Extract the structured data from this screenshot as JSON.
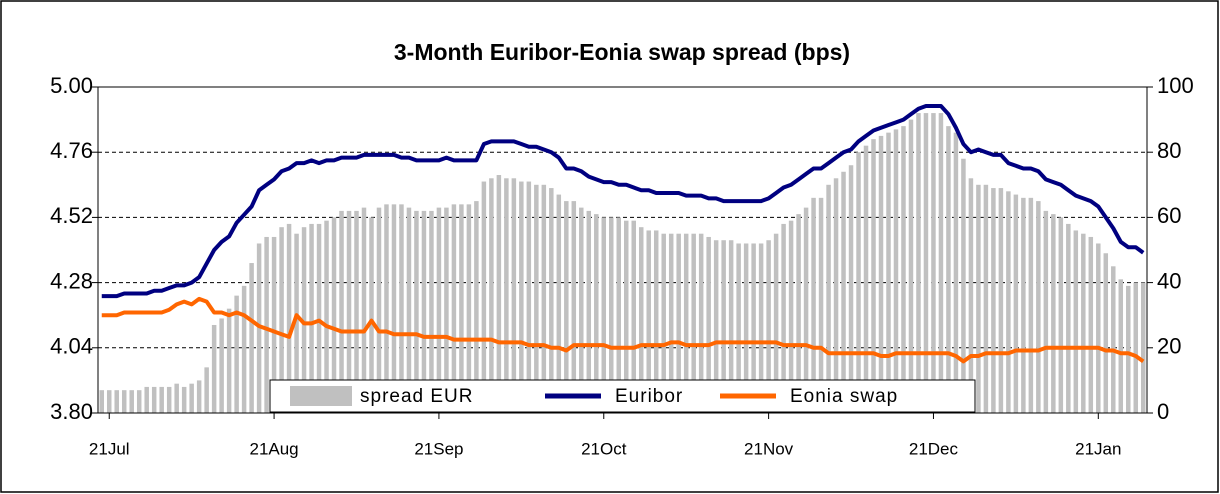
{
  "chart_data": {
    "type": "bar",
    "title": "3-Month Euribor-Eonia swap spread (bps)",
    "categories": [
      null,
      "21Jul",
      null,
      null,
      null,
      null,
      null,
      null,
      null,
      null,
      null,
      null,
      null,
      null,
      null,
      null,
      null,
      null,
      null,
      null,
      null,
      null,
      null,
      "21Aug",
      null,
      null,
      null,
      null,
      null,
      null,
      null,
      null,
      null,
      null,
      null,
      null,
      null,
      null,
      null,
      null,
      null,
      null,
      null,
      null,
      null,
      "21Sep",
      null,
      null,
      null,
      null,
      null,
      null,
      null,
      null,
      null,
      null,
      null,
      null,
      null,
      null,
      null,
      null,
      null,
      null,
      null,
      null,
      null,
      "21Oct",
      null,
      null,
      null,
      null,
      null,
      null,
      null,
      null,
      null,
      null,
      null,
      null,
      null,
      null,
      null,
      null,
      null,
      null,
      null,
      null,
      null,
      "21Nov",
      null,
      null,
      null,
      null,
      null,
      null,
      null,
      null,
      null,
      null,
      null,
      null,
      null,
      null,
      null,
      null,
      null,
      null,
      null,
      null,
      null,
      "21Dec",
      null,
      null,
      null,
      null,
      null,
      null,
      null,
      null,
      null,
      null,
      null,
      null,
      null,
      null,
      null,
      null,
      null,
      null,
      null,
      null,
      null,
      "21Jan",
      null,
      null,
      null,
      null,
      null,
      null
    ],
    "series": [
      {
        "name": "spread EUR",
        "type": "bar",
        "axis": "y2",
        "color": "#c0c0c0",
        "values": [
          7,
          7,
          7,
          7,
          7,
          7,
          8,
          8,
          8,
          8,
          9,
          8,
          9,
          10,
          14,
          27,
          29,
          32,
          36,
          39,
          46,
          52,
          54,
          54,
          57,
          58,
          55,
          57,
          58,
          58,
          59,
          60,
          62,
          62,
          62,
          63,
          60,
          63,
          64,
          64,
          64,
          63,
          62,
          62,
          62,
          63,
          63,
          64,
          64,
          64,
          65,
          71,
          72,
          73,
          72,
          72,
          71,
          71,
          70,
          70,
          69,
          67,
          65,
          65,
          63,
          62,
          61,
          60,
          60,
          60,
          59,
          59,
          57,
          56,
          56,
          55,
          55,
          55,
          55,
          55,
          55,
          54,
          53,
          53,
          53,
          52,
          52,
          52,
          52,
          53,
          55,
          58,
          59,
          61,
          63,
          66,
          66,
          70,
          72,
          74,
          76,
          80,
          82,
          84,
          85,
          86,
          87,
          88,
          90,
          92,
          92,
          92,
          92,
          88,
          86,
          78,
          72,
          70,
          70,
          69,
          69,
          68,
          67,
          66,
          66,
          65,
          62,
          61,
          60,
          58,
          56,
          55,
          54,
          52,
          49,
          45,
          41,
          39,
          40,
          40
        ]
      },
      {
        "name": "Euribor",
        "type": "line",
        "color": "#000080",
        "values": [
          4.23,
          4.23,
          4.23,
          4.24,
          4.24,
          4.24,
          4.24,
          4.25,
          4.25,
          4.26,
          4.27,
          4.27,
          4.28,
          4.3,
          4.35,
          4.4,
          4.43,
          4.45,
          4.5,
          4.53,
          4.56,
          4.62,
          4.64,
          4.66,
          4.69,
          4.7,
          4.72,
          4.72,
          4.73,
          4.72,
          4.73,
          4.73,
          4.74,
          4.74,
          4.74,
          4.75,
          4.75,
          4.75,
          4.75,
          4.75,
          4.74,
          4.74,
          4.73,
          4.73,
          4.73,
          4.73,
          4.74,
          4.73,
          4.73,
          4.73,
          4.73,
          4.79,
          4.8,
          4.8,
          4.8,
          4.8,
          4.79,
          4.78,
          4.78,
          4.77,
          4.76,
          4.74,
          4.7,
          4.7,
          4.69,
          4.67,
          4.66,
          4.65,
          4.65,
          4.64,
          4.64,
          4.63,
          4.62,
          4.62,
          4.61,
          4.61,
          4.61,
          4.61,
          4.6,
          4.6,
          4.6,
          4.59,
          4.59,
          4.58,
          4.58,
          4.58,
          4.58,
          4.58,
          4.58,
          4.59,
          4.61,
          4.63,
          4.64,
          4.66,
          4.68,
          4.7,
          4.7,
          4.72,
          4.74,
          4.76,
          4.77,
          4.8,
          4.82,
          4.84,
          4.85,
          4.86,
          4.87,
          4.88,
          4.9,
          4.92,
          4.93,
          4.93,
          4.93,
          4.9,
          4.85,
          4.79,
          4.76,
          4.77,
          4.76,
          4.75,
          4.75,
          4.72,
          4.71,
          4.7,
          4.7,
          4.69,
          4.66,
          4.65,
          4.64,
          4.62,
          4.6,
          4.59,
          4.58,
          4.56,
          4.52,
          4.48,
          4.43,
          4.41,
          4.41,
          4.39
        ]
      },
      {
        "name": "Eonia swap",
        "type": "line",
        "color": "#ff6600",
        "values": [
          4.16,
          4.16,
          4.16,
          4.17,
          4.17,
          4.17,
          4.17,
          4.17,
          4.17,
          4.18,
          4.2,
          4.21,
          4.2,
          4.22,
          4.21,
          4.17,
          4.17,
          4.16,
          4.17,
          4.16,
          4.14,
          4.12,
          4.11,
          4.1,
          4.09,
          4.08,
          4.16,
          4.13,
          4.13,
          4.14,
          4.12,
          4.11,
          4.1,
          4.1,
          4.1,
          4.1,
          4.14,
          4.1,
          4.1,
          4.09,
          4.09,
          4.09,
          4.09,
          4.08,
          4.08,
          4.08,
          4.08,
          4.07,
          4.07,
          4.07,
          4.07,
          4.07,
          4.07,
          4.06,
          4.06,
          4.06,
          4.06,
          4.05,
          4.05,
          4.05,
          4.04,
          4.04,
          4.03,
          4.05,
          4.05,
          4.05,
          4.05,
          4.05,
          4.04,
          4.04,
          4.04,
          4.04,
          4.05,
          4.05,
          4.05,
          4.05,
          4.06,
          4.06,
          4.05,
          4.05,
          4.05,
          4.05,
          4.06,
          4.06,
          4.06,
          4.06,
          4.06,
          4.06,
          4.06,
          4.06,
          4.06,
          4.05,
          4.05,
          4.05,
          4.05,
          4.04,
          4.04,
          4.02,
          4.02,
          4.02,
          4.02,
          4.02,
          4.02,
          4.02,
          4.01,
          4.01,
          4.02,
          4.02,
          4.02,
          4.02,
          4.02,
          4.02,
          4.02,
          4.02,
          4.01,
          3.99,
          4.01,
          4.01,
          4.02,
          4.02,
          4.02,
          4.02,
          4.03,
          4.03,
          4.03,
          4.03,
          4.04,
          4.04,
          4.04,
          4.04,
          4.04,
          4.04,
          4.04,
          4.04,
          4.03,
          4.03,
          4.02,
          4.02,
          4.01,
          3.99
        ]
      }
    ],
    "ylim": [
      3.8,
      5.0
    ],
    "yticks": [
      {
        "value": 3.8,
        "label": "3.80"
      },
      4.04,
      4.28,
      4.52,
      4.76,
      {
        "value": 5.0,
        "label": "5.00"
      }
    ],
    "y2lim": [
      0,
      100
    ],
    "y2ticks": [
      0,
      20,
      40,
      60,
      80,
      100
    ],
    "grid": true,
    "legend": "bottom"
  }
}
